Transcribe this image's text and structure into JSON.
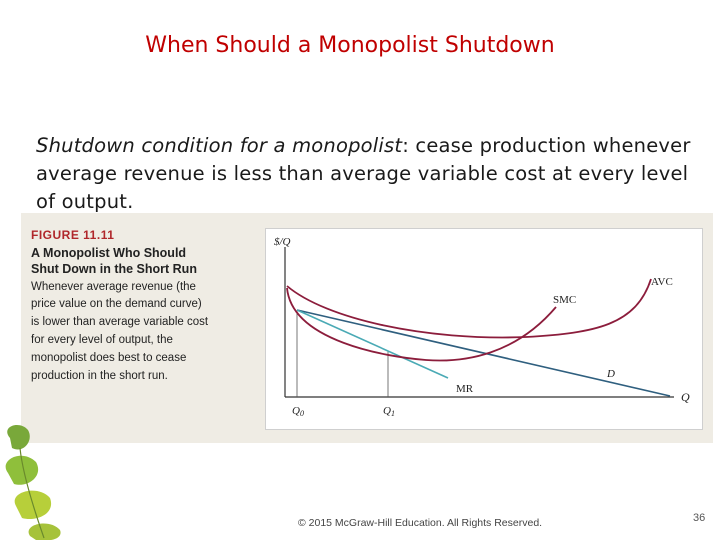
{
  "slide": {
    "title": "When Should a Monopolist Shutdown",
    "body_term": "Shutdown condition for a monopolist",
    "body_rest": ":  cease production whenever average revenue is less than average variable cost at every level of output.",
    "footer": "© 2015 McGraw-Hill Education. All Rights Reserved.",
    "page_number": "36"
  },
  "figure": {
    "label": "FIGURE 11.11",
    "title": "A Monopolist Who Should Shut Down in the Short Run",
    "caption": "Whenever average revenue (the price value on the demand curve) is lower than average variable cost for every level of output, the monopolist does best to cease production in the short run."
  },
  "chart_data": {
    "type": "line",
    "ylabel": "$/Q",
    "xlabel": "Q",
    "series": [
      {
        "name": "AVC",
        "color": "#8c1d3c"
      },
      {
        "name": "SMC",
        "color": "#8c1d3c"
      },
      {
        "name": "D",
        "color": "#2f5f7f"
      },
      {
        "name": "MR",
        "color": "#4aaab5"
      }
    ],
    "x_tick_labels": [
      "Q0",
      "Q1"
    ],
    "grid": false
  }
}
